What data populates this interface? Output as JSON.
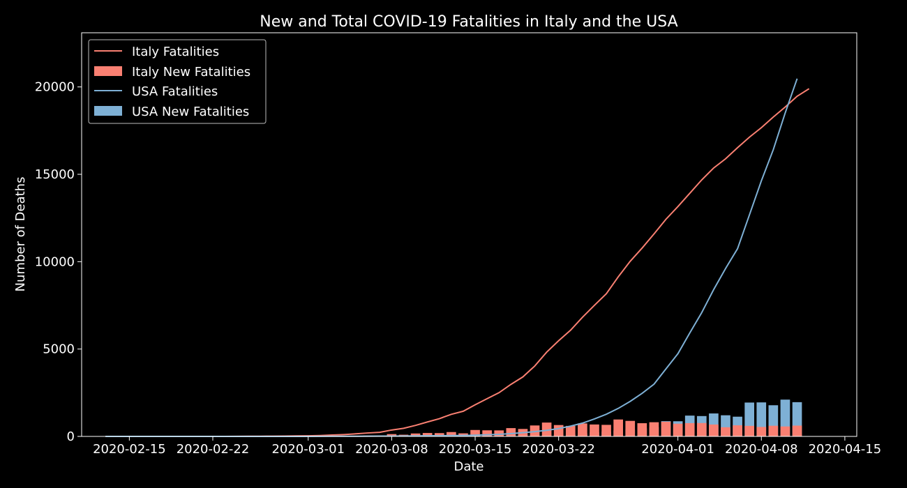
{
  "chart_data": {
    "type": "bar",
    "title": "New and Total COVID-19 Fatalities in Italy and the USA",
    "xlabel": "Date",
    "ylabel": "Number of Deaths",
    "xlim": [
      "2020-02-11",
      "2020-04-16"
    ],
    "ylim": [
      0,
      23100
    ],
    "x_ticks": [
      "2020-02-15",
      "2020-02-22",
      "2020-03-01",
      "2020-03-08",
      "2020-03-15",
      "2020-03-22",
      "2020-04-01",
      "2020-04-08",
      "2020-04-15"
    ],
    "y_ticks": [
      0,
      5000,
      10000,
      15000,
      20000
    ],
    "legend_position": "top-left",
    "grid": false,
    "colors": {
      "italy": "#fa8072",
      "usa": "#7eb0d5",
      "background": "#000000",
      "foreground": "#ffffff"
    },
    "dates": [
      "2020-02-13",
      "2020-02-14",
      "2020-02-15",
      "2020-02-16",
      "2020-02-17",
      "2020-02-18",
      "2020-02-19",
      "2020-02-20",
      "2020-02-21",
      "2020-02-22",
      "2020-02-23",
      "2020-02-24",
      "2020-02-25",
      "2020-02-26",
      "2020-02-27",
      "2020-02-28",
      "2020-02-29",
      "2020-03-01",
      "2020-03-02",
      "2020-03-03",
      "2020-03-04",
      "2020-03-05",
      "2020-03-06",
      "2020-03-07",
      "2020-03-08",
      "2020-03-09",
      "2020-03-10",
      "2020-03-11",
      "2020-03-12",
      "2020-03-13",
      "2020-03-14",
      "2020-03-15",
      "2020-03-16",
      "2020-03-17",
      "2020-03-18",
      "2020-03-19",
      "2020-03-20",
      "2020-03-21",
      "2020-03-22",
      "2020-03-23",
      "2020-03-24",
      "2020-03-25",
      "2020-03-26",
      "2020-03-27",
      "2020-03-28",
      "2020-03-29",
      "2020-03-30",
      "2020-03-31",
      "2020-04-01",
      "2020-04-02",
      "2020-04-03",
      "2020-04-04",
      "2020-04-05",
      "2020-04-06",
      "2020-04-07",
      "2020-04-08",
      "2020-04-09",
      "2020-04-10",
      "2020-04-11"
    ],
    "series": [
      {
        "name": "Italy Fatalities",
        "kind": "line",
        "color_key": "italy",
        "values": [
          0,
          0,
          0,
          0,
          0,
          0,
          0,
          0,
          0,
          0,
          2,
          6,
          10,
          12,
          17,
          21,
          29,
          34,
          52,
          79,
          107,
          148,
          197,
          233,
          366,
          463,
          631,
          827,
          1016,
          1266,
          1441,
          1809,
          2158,
          2503,
          2978,
          3405,
          4032,
          4825,
          5476,
          6077,
          6820,
          7503,
          8165,
          9134,
          10023,
          10779,
          11591,
          12428,
          13155,
          13915,
          14681,
          15362,
          15887,
          16523,
          17127,
          17669,
          18279,
          18849,
          19468
        ]
      },
      {
        "name": "Italy New Fatalities",
        "kind": "bar",
        "color_key": "italy",
        "values": [
          0,
          0,
          0,
          0,
          0,
          0,
          0,
          0,
          0,
          0,
          2,
          4,
          4,
          2,
          5,
          4,
          8,
          5,
          18,
          27,
          28,
          41,
          49,
          36,
          133,
          97,
          168,
          196,
          189,
          250,
          175,
          368,
          349,
          345,
          475,
          427,
          627,
          793,
          651,
          601,
          743,
          683,
          662,
          969,
          889,
          756,
          812,
          837,
          727,
          760,
          766,
          681,
          525,
          636,
          604,
          542,
          610,
          570,
          619
        ]
      },
      {
        "name": "USA Fatalities",
        "kind": "line",
        "color_key": "usa",
        "values": [
          0,
          0,
          0,
          0,
          0,
          0,
          0,
          0,
          0,
          0,
          0,
          0,
          0,
          0,
          0,
          0,
          1,
          1,
          6,
          9,
          11,
          12,
          15,
          19,
          22,
          26,
          30,
          38,
          41,
          48,
          57,
          70,
          95,
          118,
          162,
          216,
          272,
          349,
          448,
          589,
          762,
          998,
          1269,
          1604,
          2005,
          2467,
          2993,
          3865,
          4732,
          5923,
          7088,
          8402,
          9612,
          10741,
          12679,
          14626,
          16410,
          18516,
          20476
        ]
      },
      {
        "name": "USA New Fatalities",
        "kind": "bar",
        "color_key": "usa",
        "values": [
          0,
          0,
          0,
          0,
          0,
          0,
          0,
          0,
          0,
          0,
          0,
          0,
          0,
          0,
          0,
          0,
          1,
          0,
          5,
          3,
          2,
          1,
          3,
          4,
          3,
          4,
          4,
          8,
          3,
          7,
          9,
          13,
          25,
          23,
          44,
          54,
          56,
          77,
          99,
          141,
          173,
          236,
          271,
          335,
          401,
          462,
          526,
          872,
          867,
          1191,
          1165,
          1314,
          1210,
          1129,
          1938,
          1947,
          1784,
          2106,
          1960
        ]
      }
    ],
    "overlay_series": {
      "name": "Italy Fatalities",
      "kind": "line",
      "color_key": "italy",
      "note_hidden": false,
      "extra_points": [
        [
          "2020-04-12",
          19899
        ]
      ]
    }
  }
}
